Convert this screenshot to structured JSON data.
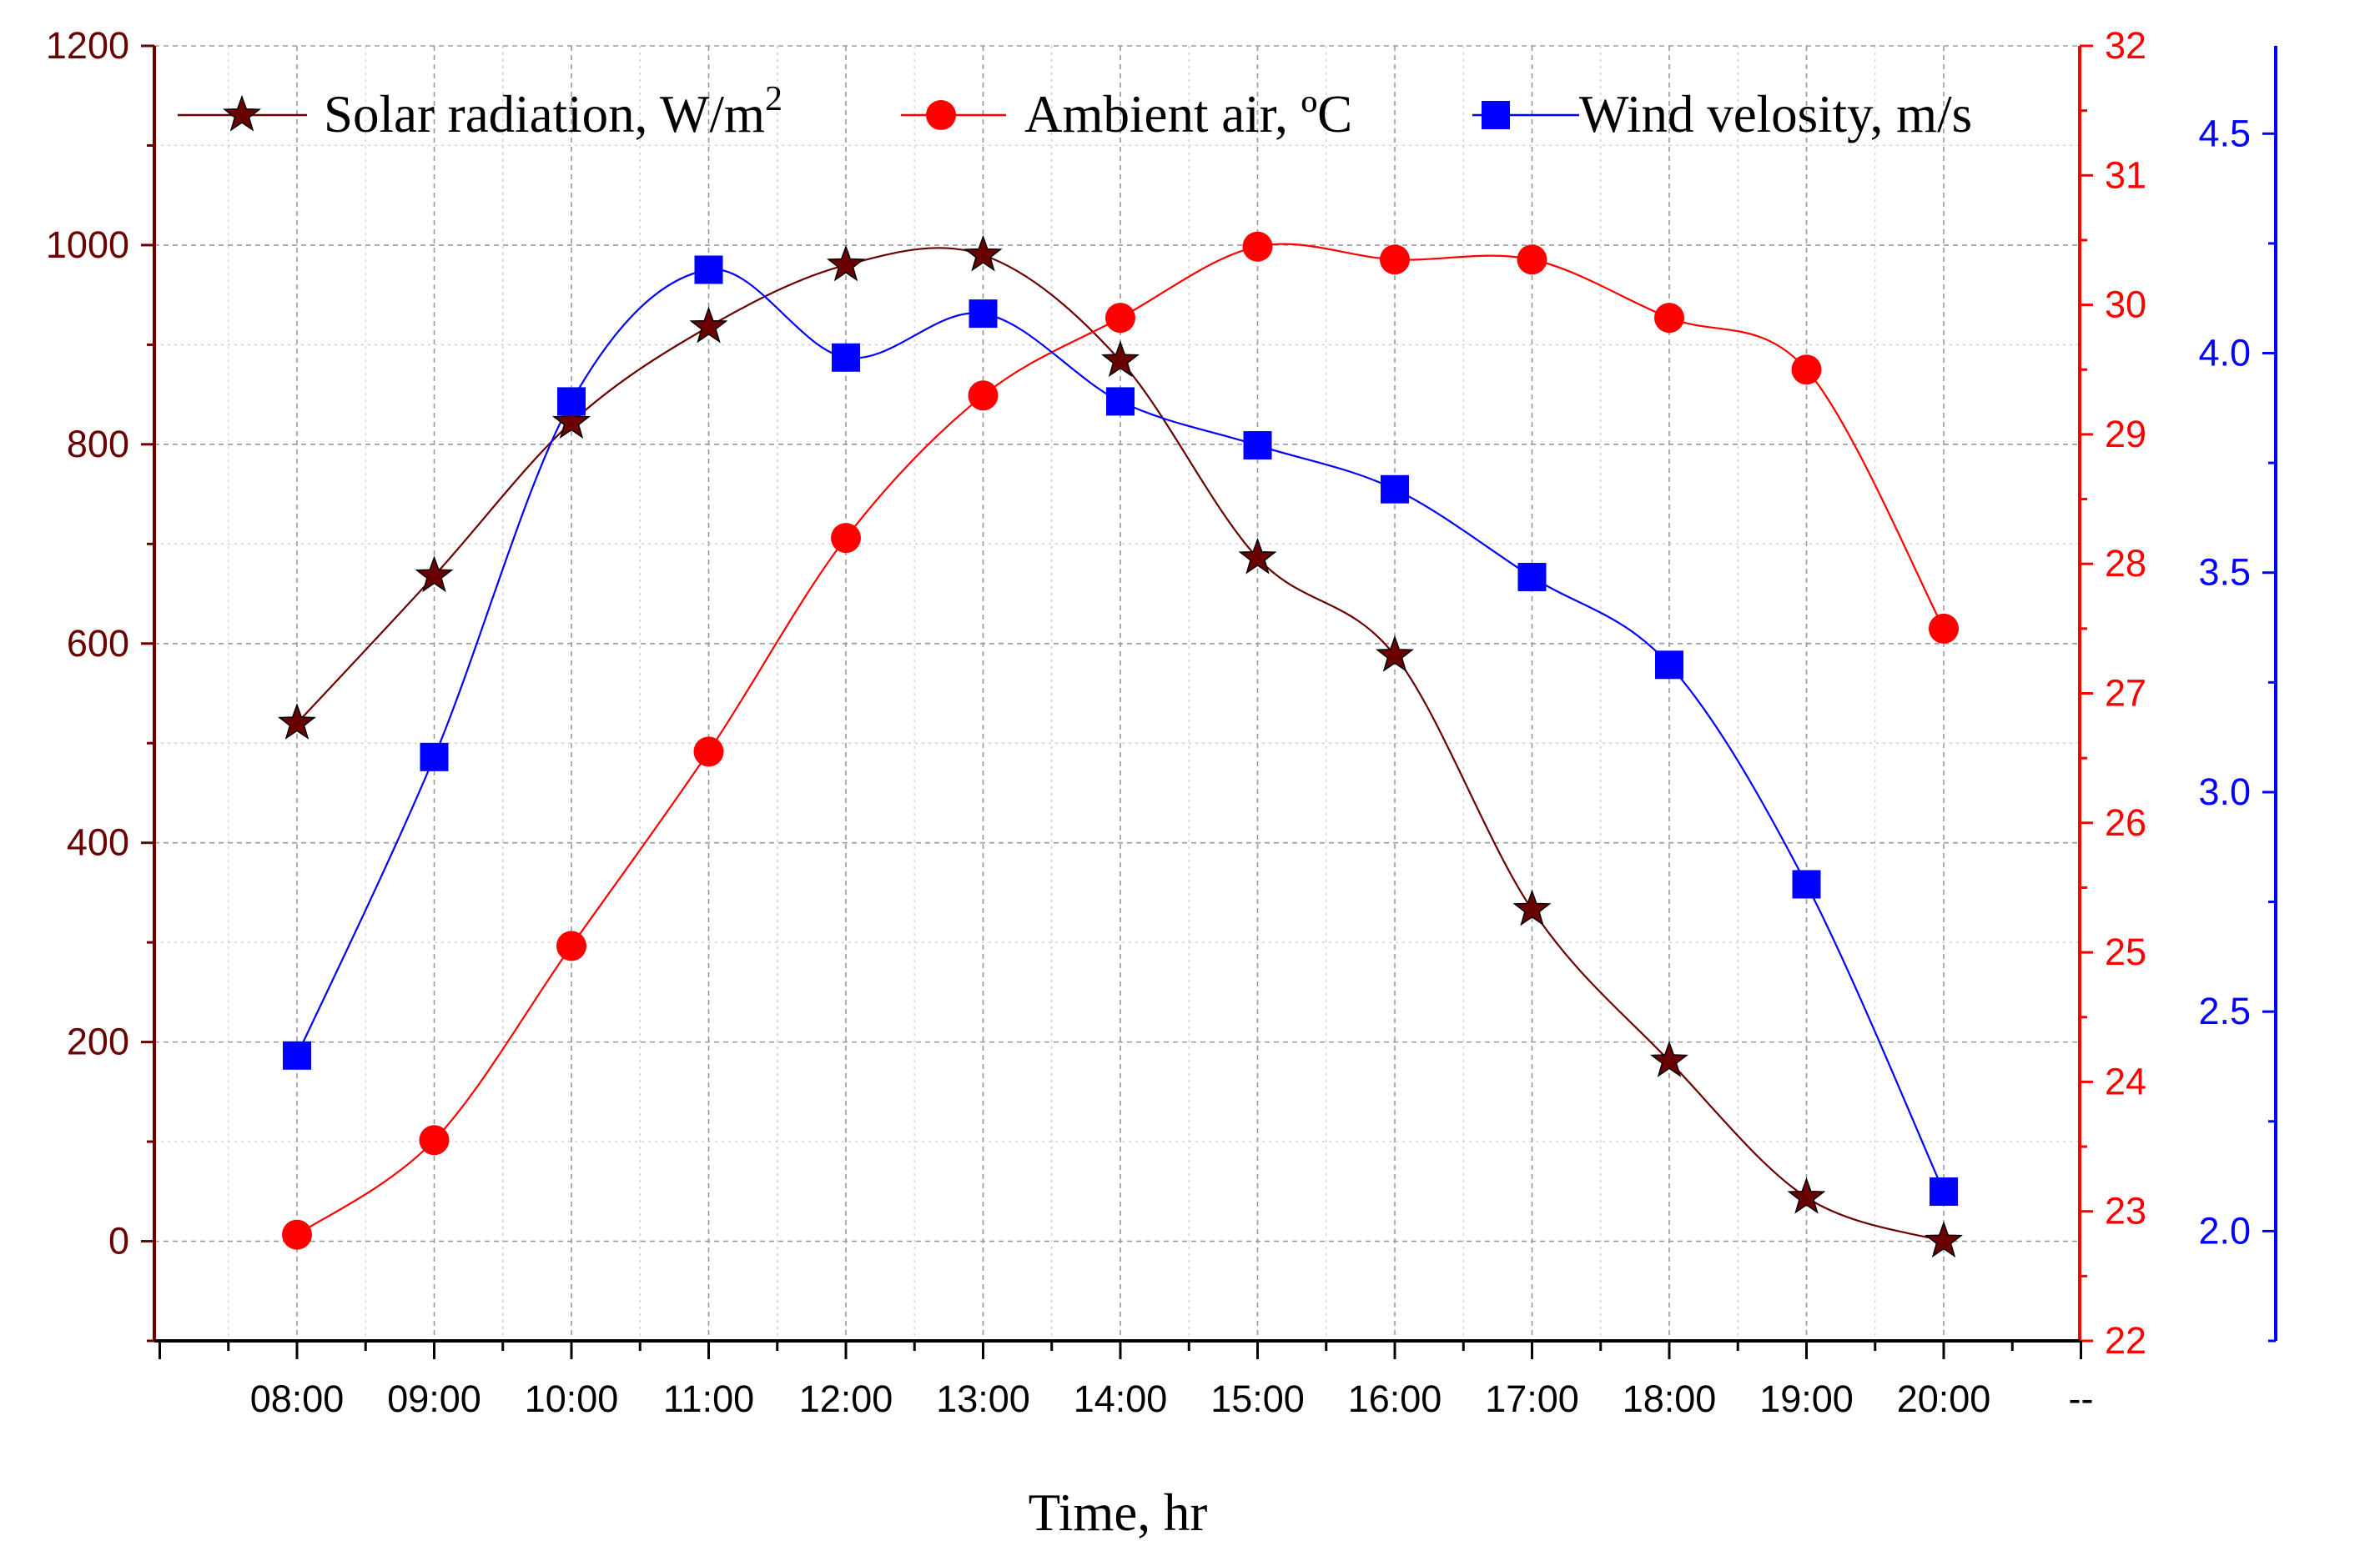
{
  "chart_data": {
    "type": "line",
    "title": "",
    "xlabel": "Time, hr",
    "categories": [
      "08:00",
      "09:00",
      "10:00",
      "11:00",
      "12:00",
      "13:00",
      "14:00",
      "15:00",
      "16:00",
      "17:00",
      "18:00",
      "19:00",
      "20:00"
    ],
    "x_end_label": "--",
    "grid": true,
    "legend_position": "top",
    "series": [
      {
        "name": "Solar radiation, W/m",
        "name_superscript": "2",
        "axis": "left",
        "marker": "star",
        "color": "#6b0000",
        "values": [
          520,
          668,
          822,
          918,
          980,
          990,
          884,
          686,
          588,
          333,
          181,
          44,
          0
        ]
      },
      {
        "name": "Ambient air, ºC",
        "axis": "right",
        "marker": "circle",
        "color": "#ff0000",
        "values": [
          22.82,
          23.55,
          25.05,
          26.55,
          28.2,
          29.3,
          29.9,
          30.45,
          30.35,
          30.35,
          29.9,
          29.5,
          27.5
        ]
      },
      {
        "name": "Wind velosity, m/s",
        "axis": "right2",
        "marker": "square",
        "color": "#0000ff",
        "values": [
          2.4,
          3.08,
          3.89,
          4.19,
          3.99,
          4.09,
          3.89,
          3.79,
          3.69,
          3.49,
          3.29,
          2.79,
          2.09
        ]
      }
    ],
    "axes": {
      "left": {
        "color": "#6b0000",
        "ylim": [
          -100,
          1200
        ],
        "ticks": [
          0,
          200,
          400,
          600,
          800,
          1000,
          1200
        ],
        "tick_labels": [
          "0",
          "200",
          "400",
          "600",
          "800",
          "1000",
          "1200"
        ]
      },
      "right": {
        "color": "#ff0000",
        "ylim": [
          22,
          32
        ],
        "ticks": [
          22,
          23,
          24,
          25,
          26,
          27,
          28,
          29,
          30,
          31,
          32
        ],
        "tick_labels": [
          "22",
          "23",
          "24",
          "25",
          "26",
          "27",
          "28",
          "29",
          "30",
          "31",
          "32"
        ]
      },
      "right2": {
        "color": "#0000ff",
        "ylim": [
          1.75,
          4.7
        ],
        "ticks": [
          2.0,
          2.5,
          3.0,
          3.5,
          4.0,
          4.5
        ],
        "tick_labels": [
          "2.0",
          "2.5",
          "3.0",
          "3.5",
          "4.0",
          "4.5"
        ]
      }
    }
  }
}
